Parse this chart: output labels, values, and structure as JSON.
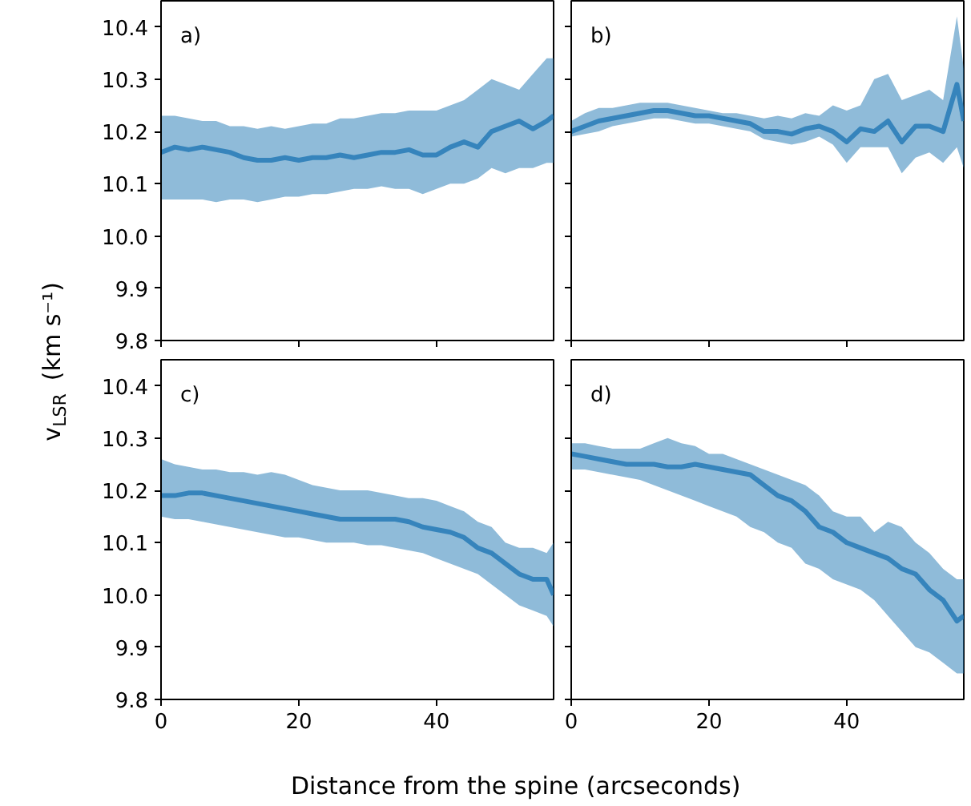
{
  "chart_data": [
    {
      "type": "line",
      "ylabel": "v$_{LSR}$ (km s⁻¹)",
      "annotations": [
        "a)"
      ],
      "tick_labels": "y",
      "x": [
        0,
        2,
        4,
        6,
        8,
        10,
        12,
        14,
        16,
        18,
        20,
        22,
        24,
        26,
        28,
        30,
        32,
        34,
        36,
        38,
        40,
        42,
        44,
        46,
        48,
        50,
        52,
        54,
        56,
        57
      ],
      "series": [
        {
          "color": "#1f77b4",
          "values": [
            10.16,
            10.17,
            10.165,
            10.17,
            10.165,
            10.16,
            10.15,
            10.145,
            10.145,
            10.15,
            10.145,
            10.15,
            10.15,
            10.155,
            10.15,
            10.155,
            10.16,
            10.16,
            10.165,
            10.155,
            10.155,
            10.17,
            10.18,
            10.17,
            10.2,
            10.21,
            10.22,
            10.205,
            10.22,
            10.23
          ],
          "upper": [
            10.23,
            10.23,
            10.225,
            10.22,
            10.22,
            10.21,
            10.21,
            10.205,
            10.21,
            10.205,
            10.21,
            10.215,
            10.215,
            10.225,
            10.225,
            10.23,
            10.235,
            10.235,
            10.24,
            10.24,
            10.24,
            10.25,
            10.26,
            10.28,
            10.3,
            10.29,
            10.28,
            10.31,
            10.34,
            10.34
          ],
          "lower": [
            10.07,
            10.07,
            10.07,
            10.07,
            10.065,
            10.07,
            10.07,
            10.065,
            10.07,
            10.075,
            10.075,
            10.08,
            10.08,
            10.085,
            10.09,
            10.09,
            10.095,
            10.09,
            10.09,
            10.08,
            10.09,
            10.1,
            10.1,
            10.11,
            10.13,
            10.12,
            10.13,
            10.13,
            10.14,
            10.14
          ]
        }
      ],
      "xlim": [
        0,
        57
      ],
      "ylim": [
        9.8,
        10.45
      ],
      "xticks": [
        0,
        20,
        40
      ],
      "yticks": [
        {
          "value": 9.8,
          "label": "9.8"
        },
        {
          "value": 9.9,
          "label": "9.9"
        },
        {
          "value": 10.0,
          "label": "10.0"
        },
        {
          "value": 10.1,
          "label": "10.1"
        },
        {
          "value": 10.2,
          "label": "10.2"
        },
        {
          "value": 10.3,
          "label": "10.3"
        },
        {
          "value": 10.4,
          "label": "10.4"
        }
      ]
    },
    {
      "type": "line",
      "annotations": [
        "b)"
      ],
      "tick_labels": false,
      "x": [
        0,
        2,
        4,
        6,
        8,
        10,
        12,
        14,
        16,
        18,
        20,
        22,
        24,
        26,
        28,
        30,
        32,
        34,
        36,
        38,
        40,
        42,
        44,
        46,
        48,
        50,
        52,
        54,
        56,
        57
      ],
      "series": [
        {
          "color": "#1f77b4",
          "values": [
            10.2,
            10.21,
            10.22,
            10.225,
            10.23,
            10.235,
            10.24,
            10.24,
            10.235,
            10.23,
            10.23,
            10.225,
            10.22,
            10.215,
            10.2,
            10.2,
            10.195,
            10.205,
            10.21,
            10.2,
            10.18,
            10.205,
            10.2,
            10.22,
            10.18,
            10.21,
            10.21,
            10.2,
            10.29,
            10.22
          ],
          "upper": [
            10.22,
            10.235,
            10.245,
            10.245,
            10.25,
            10.255,
            10.255,
            10.255,
            10.25,
            10.245,
            10.24,
            10.235,
            10.235,
            10.23,
            10.225,
            10.23,
            10.225,
            10.235,
            10.23,
            10.25,
            10.24,
            10.25,
            10.3,
            10.31,
            10.26,
            10.27,
            10.28,
            10.26,
            10.42,
            10.32
          ],
          "lower": [
            10.19,
            10.195,
            10.2,
            10.21,
            10.215,
            10.22,
            10.225,
            10.225,
            10.22,
            10.215,
            10.215,
            10.21,
            10.205,
            10.2,
            10.185,
            10.18,
            10.175,
            10.18,
            10.19,
            10.175,
            10.14,
            10.17,
            10.17,
            10.17,
            10.12,
            10.15,
            10.16,
            10.14,
            10.17,
            10.13
          ]
        }
      ],
      "xlim": [
        0,
        57
      ],
      "ylim": [
        9.8,
        10.45
      ],
      "xticks": [
        0,
        20,
        40
      ],
      "yticks": [
        9.8,
        9.9,
        10.0,
        10.1,
        10.2,
        10.3,
        10.4
      ]
    },
    {
      "type": "line",
      "xlabel": "Distance from the spine (arcseconds)",
      "annotations": [
        "c)"
      ],
      "x": [
        0,
        2,
        4,
        6,
        8,
        10,
        12,
        14,
        16,
        18,
        20,
        22,
        24,
        26,
        28,
        30,
        32,
        34,
        36,
        38,
        40,
        42,
        44,
        46,
        48,
        50,
        52,
        54,
        56,
        57
      ],
      "series": [
        {
          "color": "#1f77b4",
          "values": [
            10.19,
            10.19,
            10.195,
            10.195,
            10.19,
            10.185,
            10.18,
            10.175,
            10.17,
            10.165,
            10.16,
            10.155,
            10.15,
            10.145,
            10.145,
            10.145,
            10.145,
            10.145,
            10.14,
            10.13,
            10.125,
            10.12,
            10.11,
            10.09,
            10.08,
            10.06,
            10.04,
            10.03,
            10.03,
            10.0
          ],
          "upper": [
            10.26,
            10.25,
            10.245,
            10.24,
            10.24,
            10.235,
            10.235,
            10.23,
            10.235,
            10.23,
            10.22,
            10.21,
            10.205,
            10.2,
            10.2,
            10.2,
            10.195,
            10.19,
            10.185,
            10.185,
            10.18,
            10.17,
            10.16,
            10.14,
            10.13,
            10.1,
            10.09,
            10.09,
            10.08,
            10.1
          ],
          "lower": [
            10.15,
            10.145,
            10.145,
            10.14,
            10.135,
            10.13,
            10.125,
            10.12,
            10.115,
            10.11,
            10.11,
            10.105,
            10.1,
            10.1,
            10.1,
            10.095,
            10.095,
            10.09,
            10.085,
            10.08,
            10.07,
            10.06,
            10.05,
            10.04,
            10.02,
            10.0,
            9.98,
            9.97,
            9.96,
            9.94
          ]
        }
      ],
      "xlim": [
        0,
        57
      ],
      "ylim": [
        9.8,
        10.45
      ],
      "xticks": [
        0,
        20,
        40
      ],
      "yticks": [
        {
          "value": 9.8,
          "label": "9.8"
        },
        {
          "value": 9.9,
          "label": "9.9"
        },
        {
          "value": 10.0,
          "label": "10.0"
        },
        {
          "value": 10.1,
          "label": "10.1"
        },
        {
          "value": 10.2,
          "label": "10.2"
        },
        {
          "value": 10.3,
          "label": "10.3"
        },
        {
          "value": 10.4,
          "label": "10.4"
        }
      ]
    },
    {
      "type": "line",
      "annotations": [
        "d)"
      ],
      "tick_labels": "x",
      "x": [
        0,
        2,
        4,
        6,
        8,
        10,
        12,
        14,
        16,
        18,
        20,
        22,
        24,
        26,
        28,
        30,
        32,
        34,
        36,
        38,
        40,
        42,
        44,
        46,
        48,
        50,
        52,
        54,
        56,
        57
      ],
      "series": [
        {
          "color": "#1f77b4",
          "values": [
            10.27,
            10.265,
            10.26,
            10.255,
            10.25,
            10.25,
            10.25,
            10.245,
            10.245,
            10.25,
            10.245,
            10.24,
            10.235,
            10.23,
            10.21,
            10.19,
            10.18,
            10.16,
            10.13,
            10.12,
            10.1,
            10.09,
            10.08,
            10.07,
            10.05,
            10.04,
            10.01,
            9.99,
            9.95,
            9.96
          ],
          "upper": [
            10.29,
            10.29,
            10.285,
            10.28,
            10.28,
            10.28,
            10.29,
            10.3,
            10.29,
            10.285,
            10.27,
            10.27,
            10.26,
            10.25,
            10.24,
            10.23,
            10.22,
            10.21,
            10.19,
            10.16,
            10.15,
            10.15,
            10.12,
            10.14,
            10.13,
            10.1,
            10.08,
            10.05,
            10.03,
            10.03
          ],
          "lower": [
            10.24,
            10.24,
            10.235,
            10.23,
            10.225,
            10.22,
            10.21,
            10.2,
            10.19,
            10.18,
            10.17,
            10.16,
            10.15,
            10.13,
            10.12,
            10.1,
            10.09,
            10.06,
            10.05,
            10.03,
            10.02,
            10.01,
            9.99,
            9.96,
            9.93,
            9.9,
            9.89,
            9.87,
            9.85,
            9.85
          ]
        }
      ],
      "xlim": [
        0,
        57
      ],
      "ylim": [
        9.8,
        10.45
      ],
      "xticks": [
        0,
        20,
        40
      ],
      "yticks": [
        9.8,
        9.9,
        10.0,
        10.1,
        10.2,
        10.3,
        10.4
      ]
    }
  ]
}
